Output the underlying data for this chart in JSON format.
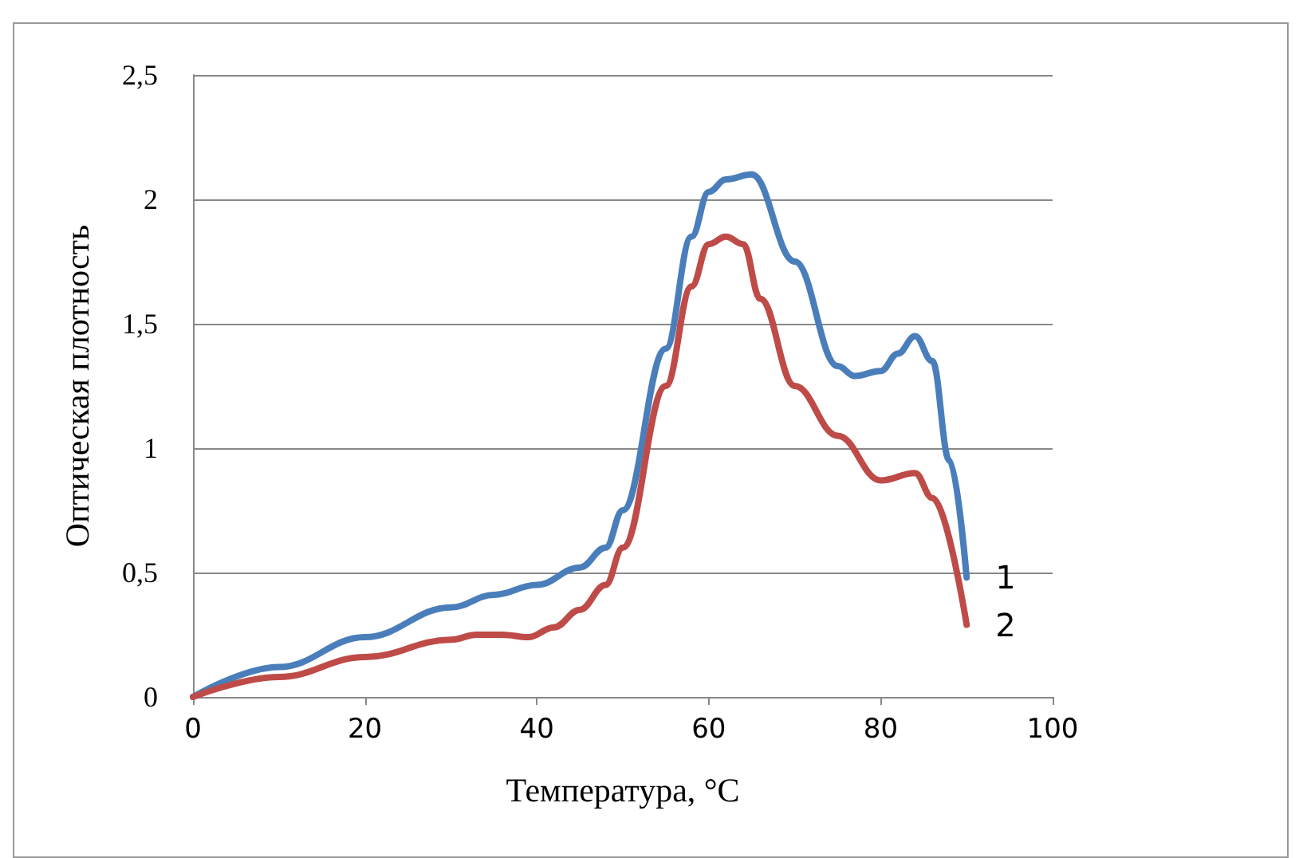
{
  "chart_data": {
    "type": "line",
    "xlabel": "Температура, °C",
    "ylabel": "Оптическая плотность",
    "xlim": [
      0,
      100
    ],
    "xticks": [
      0,
      20,
      40,
      60,
      80,
      100
    ],
    "ylim": [
      0,
      2.5
    ],
    "yticks": [
      {
        "value": 0,
        "label": "0"
      },
      {
        "value": 0.5,
        "label": "0,5"
      },
      {
        "value": 1,
        "label": "1"
      },
      {
        "value": 1.5,
        "label": "1,5"
      },
      {
        "value": 2,
        "label": "2"
      },
      {
        "value": 2.5,
        "label": "2,5"
      }
    ],
    "grid": "y",
    "legend": false,
    "marker": "none",
    "line_style": "solid",
    "series": [
      {
        "name": "1",
        "color": "#4a7ebb",
        "x": [
          0,
          10,
          20,
          30,
          35,
          40,
          45,
          48,
          50,
          55,
          58,
          60,
          62,
          65,
          70,
          75,
          77,
          80,
          82,
          84,
          86,
          88,
          90
        ],
        "values": [
          0,
          0.12,
          0.24,
          0.36,
          0.41,
          0.45,
          0.52,
          0.6,
          0.75,
          1.4,
          1.85,
          2.03,
          2.08,
          2.1,
          1.75,
          1.33,
          1.29,
          1.31,
          1.38,
          1.45,
          1.35,
          0.95,
          0.48
        ]
      },
      {
        "name": "2",
        "color": "#be4b48",
        "x": [
          0,
          10,
          20,
          30,
          33,
          36,
          39,
          42,
          45,
          48,
          50,
          55,
          58,
          60,
          62,
          64,
          66,
          70,
          75,
          80,
          84,
          86,
          90
        ],
        "values": [
          0,
          0.08,
          0.16,
          0.23,
          0.25,
          0.25,
          0.24,
          0.28,
          0.35,
          0.45,
          0.6,
          1.25,
          1.65,
          1.82,
          1.85,
          1.82,
          1.6,
          1.25,
          1.05,
          0.87,
          0.9,
          0.8,
          0.29
        ]
      }
    ]
  }
}
